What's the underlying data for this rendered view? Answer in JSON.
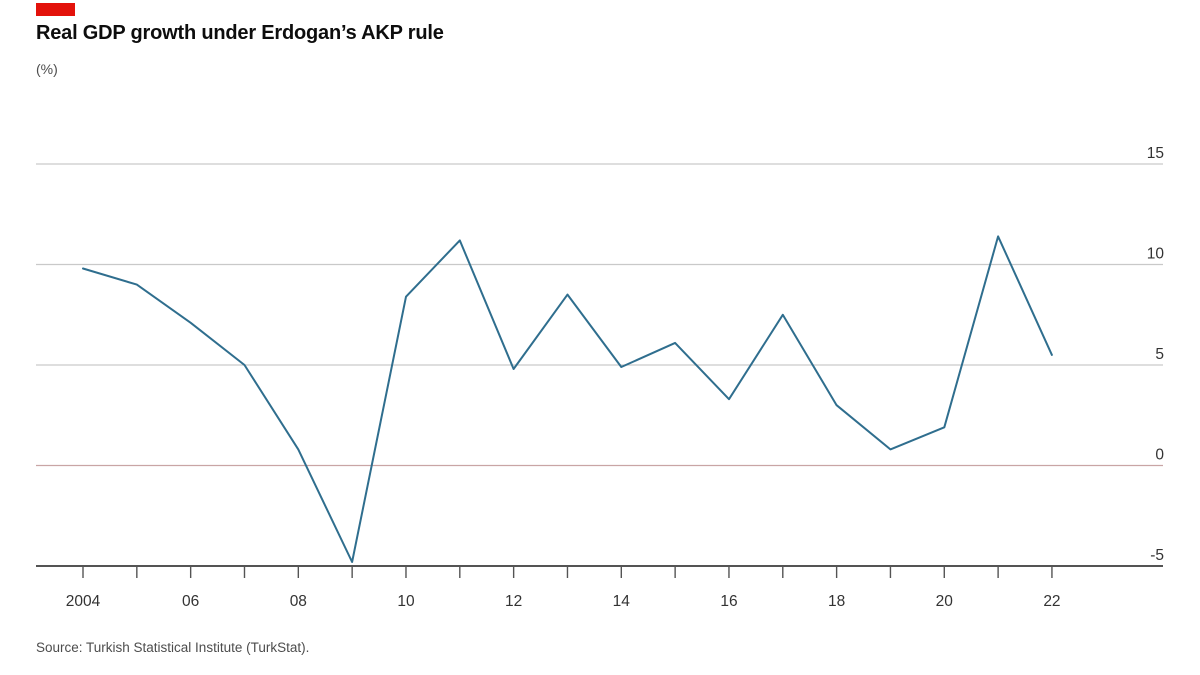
{
  "page": {
    "brand_tag_color": "#e3120b",
    "title": "Real GDP growth under Erdogan’s AKP rule",
    "unit_label": "(%)",
    "source": "Source: Turkish Statistical Institute (TurkStat)."
  },
  "chart_data": {
    "type": "line",
    "title": "Real GDP growth under Erdogan’s AKP rule",
    "ylabel": "(%)",
    "x": [
      2004,
      2005,
      2006,
      2007,
      2008,
      2009,
      2010,
      2011,
      2012,
      2013,
      2014,
      2015,
      2016,
      2017,
      2018,
      2019,
      2020,
      2021,
      2022
    ],
    "series": [
      {
        "name": "Real GDP growth (%)",
        "values": [
          9.8,
          9.0,
          7.1,
          5.0,
          0.8,
          -4.8,
          8.4,
          11.2,
          4.8,
          8.5,
          4.9,
          6.1,
          3.3,
          7.5,
          3.0,
          0.8,
          1.9,
          11.4,
          5.5
        ]
      }
    ],
    "ylim": [
      -5,
      15
    ],
    "yticks": [
      15,
      10,
      5,
      0,
      -5
    ],
    "xticks": [
      {
        "year": 2004,
        "label": "2004"
      },
      {
        "year": 2006,
        "label": "06"
      },
      {
        "year": 2008,
        "label": "08"
      },
      {
        "year": 2010,
        "label": "10"
      },
      {
        "year": 2012,
        "label": "12"
      },
      {
        "year": 2014,
        "label": "14"
      },
      {
        "year": 2016,
        "label": "16"
      },
      {
        "year": 2018,
        "label": "18"
      },
      {
        "year": 2020,
        "label": "20"
      },
      {
        "year": 2022,
        "label": "22"
      }
    ],
    "grid": true,
    "legend": "none",
    "colors": {
      "line": "#2f6e8e",
      "grid": "#c9c9c9",
      "zero_line": "#c9a5a5",
      "axis": "#545454",
      "tick_label": "#333333"
    }
  }
}
